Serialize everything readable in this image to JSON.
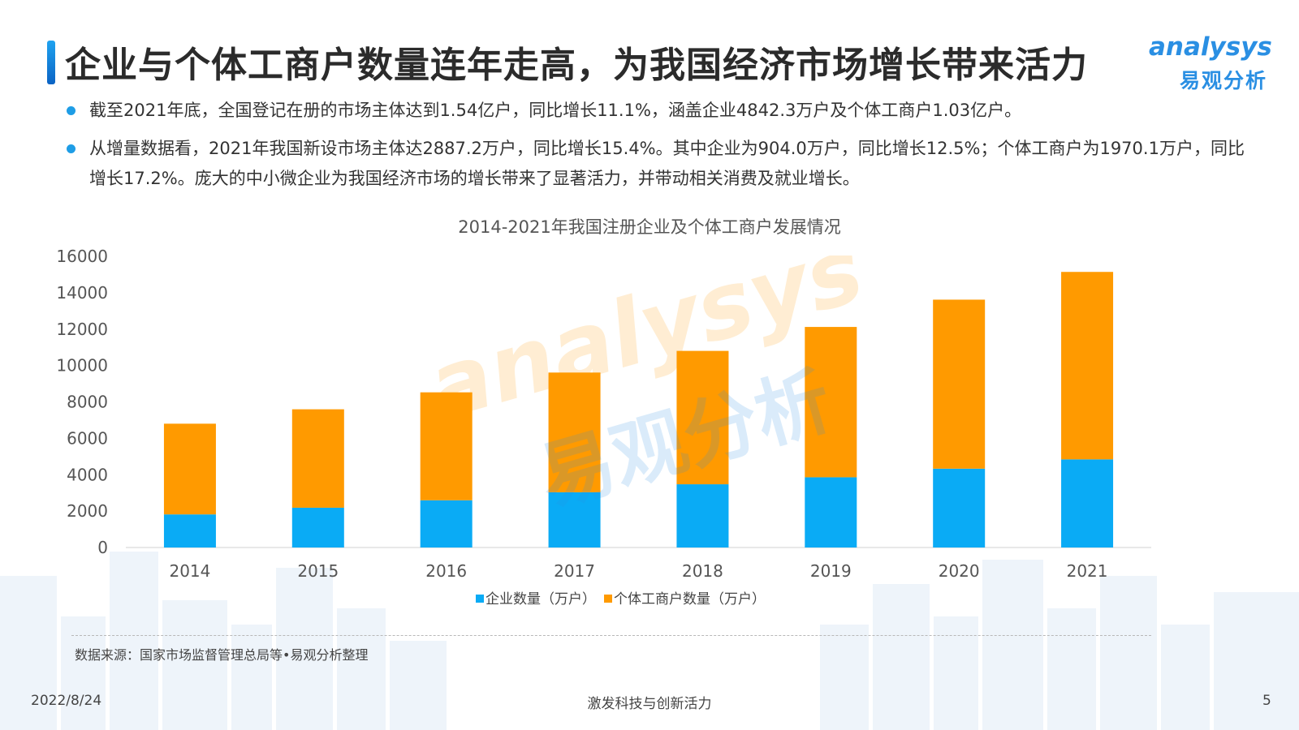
{
  "header": {
    "title": "企业与个体工商户数量连年走高，为我国经济市场增长带来活力",
    "logo_en": "analysys",
    "logo_cn": "易观分析"
  },
  "bullets": [
    {
      "text": "截至2021年底，全国登记在册的市场主体达到1.54亿户，同比增长11.1%，涵盖企业4842.3万户及个体工商户1.03亿户。"
    },
    {
      "text": "从增量数据看，2021年我国新设市场主体达2887.2万户，同比增长15.4%。其中企业为904.0万户，同比增长12.5%；个体工商户为1970.1万户，同比增长17.2%。庞大的中小微企业为我国经济市场的增长带来了显著活力，并带动相关消费及就业增长。"
    }
  ],
  "watermark": {
    "en": "analysys",
    "cn": "易观分析"
  },
  "colors": {
    "enterprise": "#0aabf5",
    "individual": "#ff9a00",
    "accent": "#1e9de6"
  },
  "chart_data": {
    "type": "bar",
    "stacked": true,
    "title": "2014-2021年我国注册企业及个体工商户发展情况",
    "categories": [
      "2014",
      "2015",
      "2016",
      "2017",
      "2018",
      "2019",
      "2020",
      "2021"
    ],
    "series": [
      {
        "name": "企业数量（万户）",
        "color": "#0aabf5",
        "values": [
          1819,
          2186,
          2596,
          3034,
          3474,
          3858,
          4331,
          4842
        ]
      },
      {
        "name": "个体工商户数量（万户）",
        "color": "#ff9a00",
        "values": [
          4984,
          5408,
          5930,
          6579,
          7329,
          8261,
          9287,
          10301
        ]
      }
    ],
    "ylim": [
      0,
      16000
    ],
    "yticks": [
      "0",
      "2000",
      "4000",
      "6000",
      "8000",
      "10000",
      "12000",
      "14000",
      "16000"
    ],
    "grid": false,
    "legend": "bottom-center"
  },
  "source": "数据来源：国家市场监督管理总局等•易观分析整理",
  "footer": {
    "date": "2022/8/24",
    "slogan": "激发科技与创新活力",
    "page": "5"
  }
}
